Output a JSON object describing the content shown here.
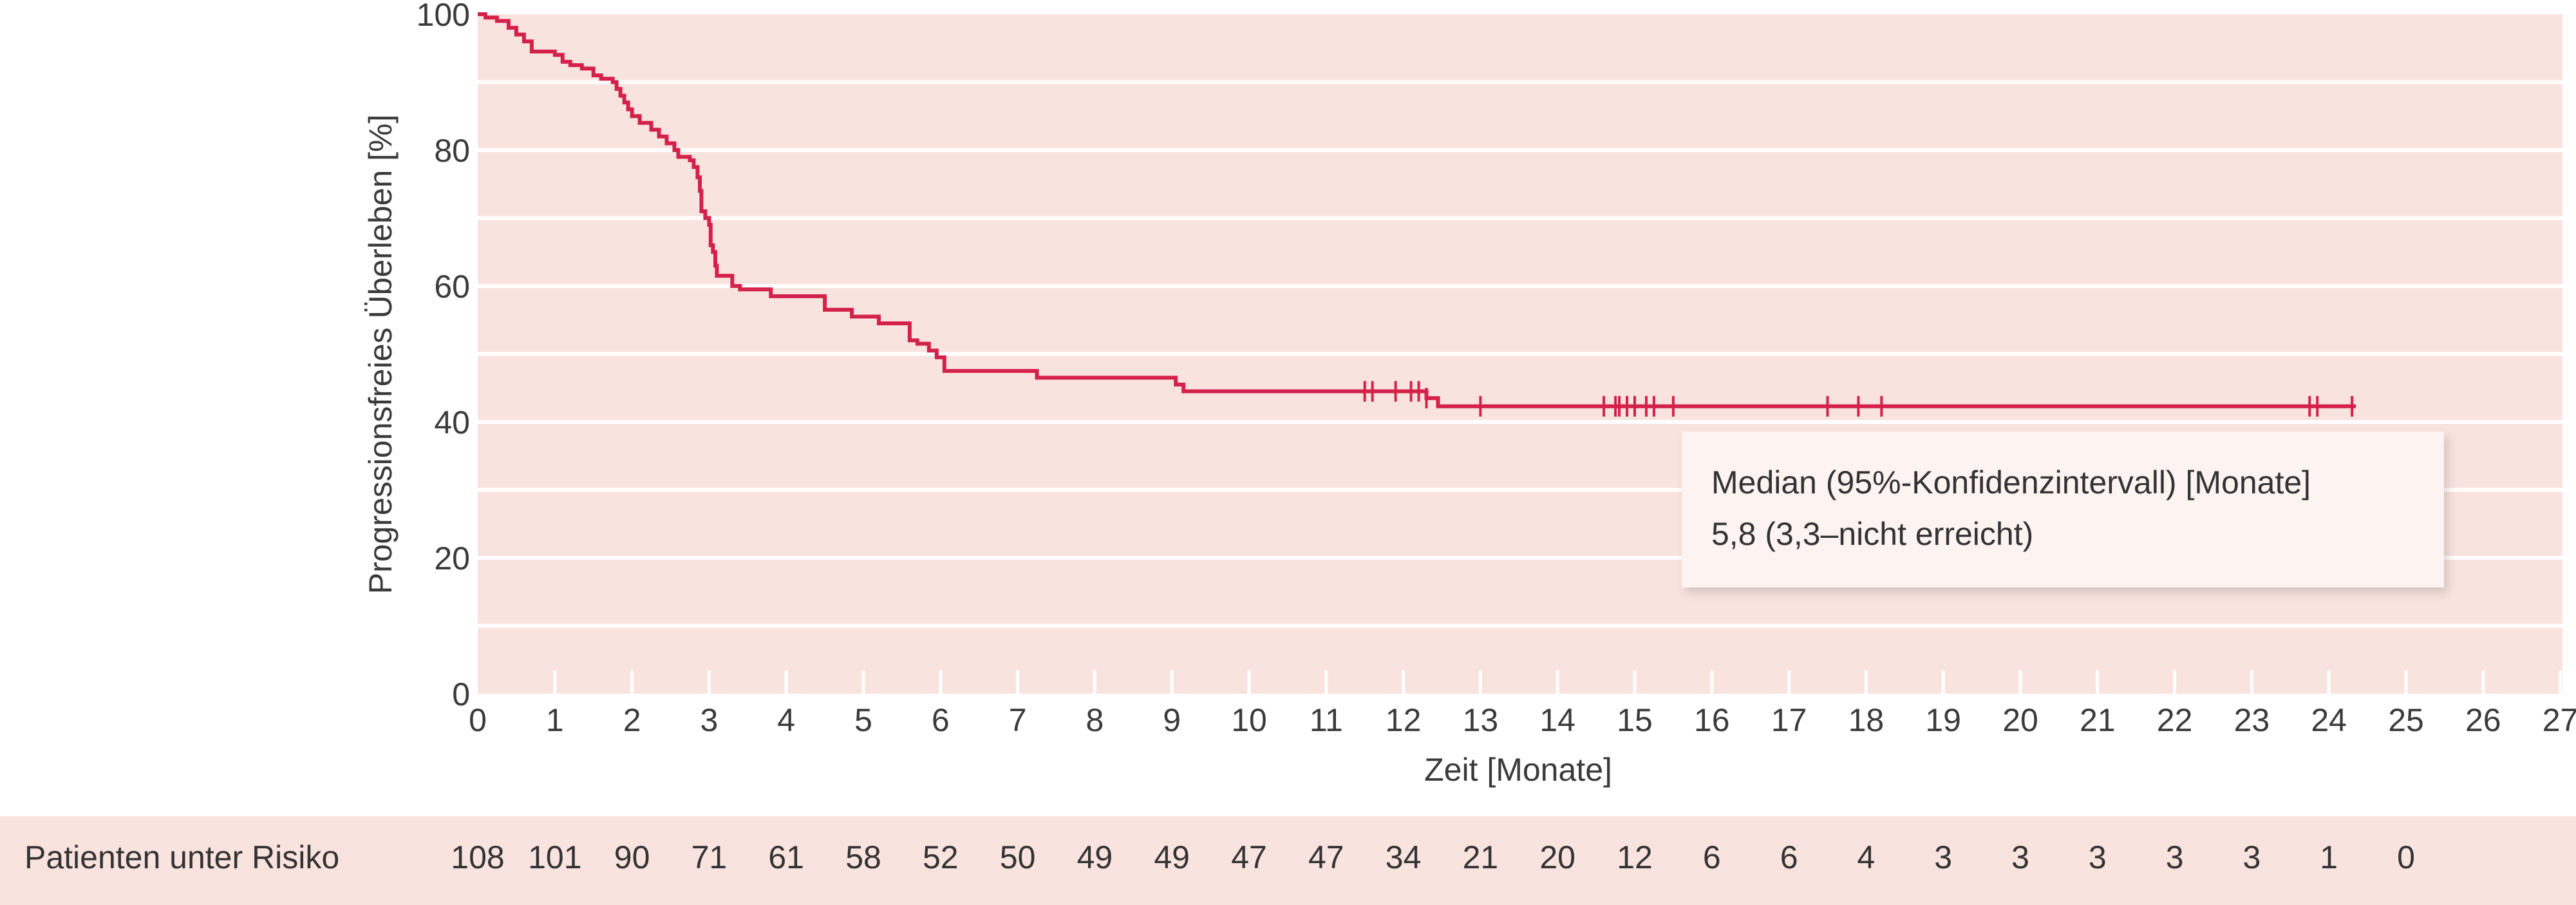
{
  "colors": {
    "plot_background": "#f9e3df",
    "grid": "#ffffff",
    "curve": "#d4214a",
    "risk_band": "#f9e3df"
  },
  "chart_data": {
    "type": "line",
    "title": "",
    "xlabel": "Zeit [Monate]",
    "ylabel": "Progressionsfreies Überleben [%]",
    "xlim": [
      0,
      27
    ],
    "ylim": [
      0,
      100
    ],
    "x_ticks": [
      "0",
      "1",
      "2",
      "3",
      "4",
      "5",
      "6",
      "7",
      "8",
      "9",
      "10",
      "11",
      "12",
      "13",
      "14",
      "15",
      "16",
      "17",
      "18",
      "19",
      "20",
      "21",
      "22",
      "23",
      "24",
      "25",
      "26",
      "27"
    ],
    "y_ticks": [
      "0",
      "20",
      "40",
      "60",
      "80",
      "100"
    ],
    "grid": "horizontal every 10",
    "series": [
      {
        "step": [
          [
            0,
            100
          ],
          [
            0.1,
            99.5
          ],
          [
            0.25,
            99
          ],
          [
            0.4,
            98
          ],
          [
            0.5,
            97
          ],
          [
            0.6,
            96
          ],
          [
            0.7,
            94.5
          ],
          [
            1.0,
            94
          ],
          [
            1.1,
            93
          ],
          [
            1.2,
            92.5
          ],
          [
            1.35,
            92
          ],
          [
            1.5,
            91
          ],
          [
            1.6,
            90.5
          ],
          [
            1.75,
            90
          ],
          [
            1.8,
            89
          ],
          [
            1.85,
            88
          ],
          [
            1.9,
            87
          ],
          [
            1.95,
            86
          ],
          [
            2.0,
            85
          ],
          [
            2.1,
            84
          ],
          [
            2.25,
            83
          ],
          [
            2.35,
            82
          ],
          [
            2.45,
            81
          ],
          [
            2.55,
            80
          ],
          [
            2.6,
            79
          ],
          [
            2.75,
            78.5
          ],
          [
            2.8,
            77.5
          ],
          [
            2.85,
            76
          ],
          [
            2.88,
            74
          ],
          [
            2.9,
            71
          ],
          [
            2.95,
            70
          ],
          [
            3.0,
            69
          ],
          [
            3.02,
            66
          ],
          [
            3.05,
            65
          ],
          [
            3.08,
            63
          ],
          [
            3.1,
            61.5
          ],
          [
            3.3,
            60
          ],
          [
            3.4,
            59.5
          ],
          [
            3.8,
            58.5
          ],
          [
            4.5,
            56.5
          ],
          [
            4.85,
            55.5
          ],
          [
            5.2,
            54.5
          ],
          [
            5.6,
            52
          ],
          [
            5.7,
            51.5
          ],
          [
            5.85,
            50.5
          ],
          [
            5.95,
            49.5
          ],
          [
            6.05,
            47.5
          ],
          [
            7.25,
            46.5
          ],
          [
            9.05,
            45.5
          ],
          [
            9.15,
            44.5
          ],
          [
            12.3,
            43.5
          ],
          [
            12.45,
            42.3
          ],
          [
            24.35,
            42.3
          ]
        ],
        "censored": [
          11.5,
          11.6,
          11.9,
          12.1,
          12.2,
          12.3,
          13.0,
          14.6,
          14.75,
          14.8,
          14.9,
          15.0,
          15.15,
          15.25,
          15.5,
          17.5,
          17.9,
          18.2,
          23.75,
          23.85,
          24.3
        ]
      }
    ],
    "legend": {
      "line1": "Median (95%-Konfidenzintervall) [Monate]",
      "line2": "5,8 (3,3–nicht erreicht)"
    },
    "risk_table": {
      "label": "Patienten unter Risiko",
      "times": [
        0,
        1,
        2,
        3,
        4,
        5,
        6,
        7,
        8,
        9,
        10,
        11,
        12,
        13,
        14,
        15,
        16,
        17,
        18,
        19,
        20,
        21,
        22,
        23,
        24,
        25
      ],
      "values": [
        "108",
        "101",
        "90",
        "71",
        "61",
        "58",
        "52",
        "50",
        "49",
        "49",
        "47",
        "47",
        "34",
        "21",
        "20",
        "12",
        "6",
        "6",
        "4",
        "3",
        "3",
        "3",
        "3",
        "3",
        "1",
        "0"
      ]
    }
  }
}
